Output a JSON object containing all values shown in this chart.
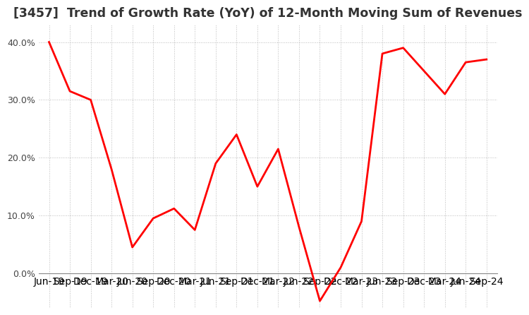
{
  "title": "[3457]  Trend of Growth Rate (YoY) of 12-Month Moving Sum of Revenues",
  "labels": [
    "Jun-19",
    "Sep-19",
    "Dec-19",
    "Mar-20",
    "Jun-20",
    "Sep-20",
    "Dec-20",
    "Mar-21",
    "Jun-21",
    "Sep-21",
    "Dec-21",
    "Mar-22",
    "Jun-22",
    "Sep-22",
    "Dec-22",
    "Mar-23",
    "Jun-23",
    "Sep-23",
    "Dec-23",
    "Mar-24",
    "Jun-24",
    "Sep-24"
  ],
  "values": [
    0.4,
    0.315,
    0.3,
    0.18,
    0.045,
    0.095,
    0.112,
    0.075,
    0.19,
    0.24,
    0.15,
    0.215,
    0.08,
    -0.048,
    0.01,
    0.09,
    0.38,
    0.39,
    0.35,
    0.31,
    0.365,
    0.37
  ],
  "line_color": "#ff0000",
  "background_color": "#ffffff",
  "grid_color": "#bbbbbb",
  "title_color": "#333333",
  "ylim": [
    -0.06,
    0.43
  ],
  "yticks": [
    0.0,
    0.1,
    0.2,
    0.3,
    0.4
  ],
  "title_fontsize": 12.5,
  "tick_fontsize": 9,
  "line_width": 2.0
}
